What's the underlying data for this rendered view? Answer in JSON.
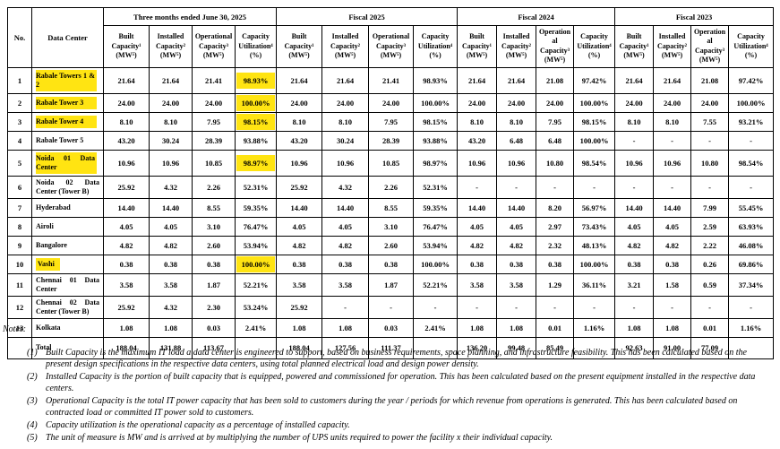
{
  "colors": {
    "highlight_yellow": "#ffe412",
    "border": "#000000",
    "text": "#000000"
  },
  "table": {
    "corner_headers": {
      "no": "No.",
      "data_center": "Data Center"
    },
    "period_groups": [
      "Three months ended June 30, 2025",
      "Fiscal 2025",
      "Fiscal 2024",
      "Fiscal 2023"
    ],
    "metric_headers": [
      "Built Capacity¹ (MW⁵)",
      "Installed Capacity² (MW⁵)",
      "Operational Capacity³ (MW⁵)",
      "Capacity Utilization⁴ (%)"
    ],
    "rows": [
      {
        "no": "1",
        "name": "Rabale Towers 1 & 2",
        "name_highlight": "full",
        "util_highlight": true,
        "values": [
          "21.64",
          "21.64",
          "21.41",
          "98.93%",
          "21.64",
          "21.64",
          "21.41",
          "98.93%",
          "21.64",
          "21.64",
          "21.08",
          "97.42%",
          "21.64",
          "21.64",
          "21.08",
          "97.42%"
        ]
      },
      {
        "no": "2",
        "name": "Rabale Tower 3",
        "name_highlight": "full",
        "util_highlight": true,
        "values": [
          "24.00",
          "24.00",
          "24.00",
          "100.00%",
          "24.00",
          "24.00",
          "24.00",
          "100.00%",
          "24.00",
          "24.00",
          "24.00",
          "100.00%",
          "24.00",
          "24.00",
          "24.00",
          "100.00%"
        ]
      },
      {
        "no": "3",
        "name": "Rabale Tower 4",
        "name_highlight": "full",
        "util_highlight": true,
        "values": [
          "8.10",
          "8.10",
          "7.95",
          "98.15%",
          "8.10",
          "8.10",
          "7.95",
          "98.15%",
          "8.10",
          "8.10",
          "7.95",
          "98.15%",
          "8.10",
          "8.10",
          "7.55",
          "93.21%"
        ]
      },
      {
        "no": "4",
        "name": "Rabale Tower 5",
        "name_highlight": null,
        "util_highlight": false,
        "values": [
          "43.20",
          "30.24",
          "28.39",
          "93.88%",
          "43.20",
          "30.24",
          "28.39",
          "93.88%",
          "43.20",
          "6.48",
          "6.48",
          "100.00%",
          "-",
          "-",
          "-",
          "-"
        ]
      },
      {
        "no": "5",
        "name": "Noida 01 Data Center",
        "name_highlight": "full",
        "util_highlight": true,
        "values": [
          "10.96",
          "10.96",
          "10.85",
          "98.97%",
          "10.96",
          "10.96",
          "10.85",
          "98.97%",
          "10.96",
          "10.96",
          "10.80",
          "98.54%",
          "10.96",
          "10.96",
          "10.80",
          "98.54%"
        ]
      },
      {
        "no": "6",
        "name": "Noida 02 Data Center (Tower B)",
        "name_highlight": null,
        "util_highlight": false,
        "values": [
          "25.92",
          "4.32",
          "2.26",
          "52.31%",
          "25.92",
          "4.32",
          "2.26",
          "52.31%",
          "-",
          "-",
          "-",
          "-",
          "-",
          "-",
          "-",
          "-"
        ]
      },
      {
        "no": "7",
        "name": "Hyderabad",
        "name_highlight": null,
        "util_highlight": false,
        "values": [
          "14.40",
          "14.40",
          "8.55",
          "59.35%",
          "14.40",
          "14.40",
          "8.55",
          "59.35%",
          "14.40",
          "14.40",
          "8.20",
          "56.97%",
          "14.40",
          "14.40",
          "7.99",
          "55.45%"
        ]
      },
      {
        "no": "8",
        "name": "Airoli",
        "name_highlight": null,
        "util_highlight": false,
        "values": [
          "4.05",
          "4.05",
          "3.10",
          "76.47%",
          "4.05",
          "4.05",
          "3.10",
          "76.47%",
          "4.05",
          "4.05",
          "2.97",
          "73.43%",
          "4.05",
          "4.05",
          "2.59",
          "63.93%"
        ]
      },
      {
        "no": "9",
        "name": "Bangalore",
        "name_highlight": null,
        "util_highlight": false,
        "values": [
          "4.82",
          "4.82",
          "2.60",
          "53.94%",
          "4.82",
          "4.82",
          "2.60",
          "53.94%",
          "4.82",
          "4.82",
          "2.32",
          "48.13%",
          "4.82",
          "4.82",
          "2.22",
          "46.08%"
        ]
      },
      {
        "no": "10",
        "name": "Vashi",
        "name_highlight": "word",
        "util_highlight": true,
        "values": [
          "0.38",
          "0.38",
          "0.38",
          "100.00%",
          "0.38",
          "0.38",
          "0.38",
          "100.00%",
          "0.38",
          "0.38",
          "0.38",
          "100.00%",
          "0.38",
          "0.38",
          "0.26",
          "69.86%"
        ]
      },
      {
        "no": "11",
        "name": "Chennai 01 Data Center",
        "name_highlight": null,
        "util_highlight": false,
        "values": [
          "3.58",
          "3.58",
          "1.87",
          "52.21%",
          "3.58",
          "3.58",
          "1.87",
          "52.21%",
          "3.58",
          "3.58",
          "1.29",
          "36.11%",
          "3.21",
          "1.58",
          "0.59",
          "37.34%"
        ]
      },
      {
        "no": "12",
        "name": "Chennai 02 Data Center (Tower B)",
        "name_highlight": null,
        "util_highlight": false,
        "values": [
          "25.92",
          "4.32",
          "2.30",
          "53.24%",
          "25.92",
          "-",
          "-",
          "-",
          "-",
          "-",
          "-",
          "-",
          "-",
          "-",
          "-",
          "-"
        ]
      },
      {
        "no": "13",
        "name": "Kolkata",
        "name_highlight": null,
        "util_highlight": false,
        "values": [
          "1.08",
          "1.08",
          "0.03",
          "2.41%",
          "1.08",
          "1.08",
          "0.03",
          "2.41%",
          "1.08",
          "1.08",
          "0.01",
          "1.16%",
          "1.08",
          "1.08",
          "0.01",
          "1.16%"
        ]
      }
    ],
    "total_row": {
      "label": "Total",
      "values": [
        "188.04",
        "131.88",
        "113.67",
        "",
        "188.04",
        "127.56",
        "111.37",
        "",
        "136.20",
        "99.48",
        "85.49",
        "",
        "92.63",
        "91.00",
        "77.09",
        ""
      ]
    }
  },
  "notes": {
    "title": "Notes:",
    "items": [
      {
        "num": "(1)",
        "text": "Built Capacity is the maximum IT load a data center is engineered to support, based on business requirements, space planning, and infrastructure feasibility. This has been calculated based on the present design specifications in the respective data centers, using total planned electrical load and design power density."
      },
      {
        "num": "(2)",
        "text": "Installed Capacity is the portion of built capacity that is equipped, powered and commissioned for operation. This has been calculated based on the present equipment installed in the respective data centers."
      },
      {
        "num": "(3)",
        "text": "Operational Capacity is the total IT power capacity that has been sold to customers during the year / periods for which revenue from operations is generated. This has been calculated based on contracted load or committed IT power sold to customers."
      },
      {
        "num": "(4)",
        "text": "Capacity utilization is the operational capacity as a percentage of installed capacity."
      },
      {
        "num": "(5)",
        "text": "The unit of measure is MW and is arrived at by multiplying the number of UPS units required to power the facility x their individual capacity."
      }
    ]
  }
}
